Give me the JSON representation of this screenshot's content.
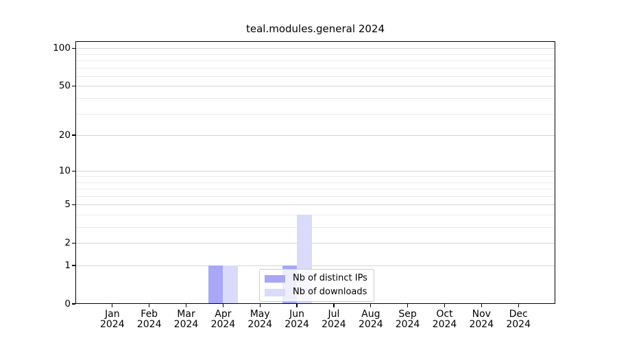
{
  "title": "teal.modules.general 2024",
  "colors": {
    "distinct_ips": "#a8a8f7",
    "downloads": "#dadaf9",
    "grid_major": "#d5d5d5",
    "grid_minor": "#ececec",
    "axis": "#000000",
    "legend_border": "#cccccc",
    "background": "#ffffff",
    "text": "#000000"
  },
  "legend": {
    "items": [
      {
        "label": "Nb of distinct IPs",
        "color_key": "distinct_ips"
      },
      {
        "label": "Nb of downloads",
        "color_key": "downloads"
      }
    ]
  },
  "chart_data": {
    "type": "bar",
    "title": "teal.modules.general 2024",
    "categories": [
      "Jan 2024",
      "Feb 2024",
      "Mar 2024",
      "Apr 2024",
      "May 2024",
      "Jun 2024",
      "Jul 2024",
      "Aug 2024",
      "Sep 2024",
      "Oct 2024",
      "Nov 2024",
      "Dec 2024"
    ],
    "series": [
      {
        "name": "Nb of distinct IPs",
        "color": "#a8a8f7",
        "values": [
          0,
          0,
          0,
          1,
          0,
          1,
          0,
          0,
          0,
          0,
          0,
          0
        ]
      },
      {
        "name": "Nb of downloads",
        "color": "#dadaf9",
        "values": [
          0,
          0,
          0,
          1,
          0,
          4,
          0,
          0,
          0,
          0,
          0,
          0
        ]
      }
    ],
    "scale": "log1p",
    "ylim": [
      0,
      113.6
    ],
    "y_ticks": [
      0,
      1,
      2,
      5,
      10,
      20,
      50,
      100
    ],
    "y_minor_gridlines": [
      3,
      4,
      6,
      7,
      8,
      9,
      30,
      40,
      60,
      70,
      80,
      90
    ],
    "xlabel": "",
    "ylabel": "",
    "grid": "horizontal",
    "legend_position": "lower-center"
  }
}
